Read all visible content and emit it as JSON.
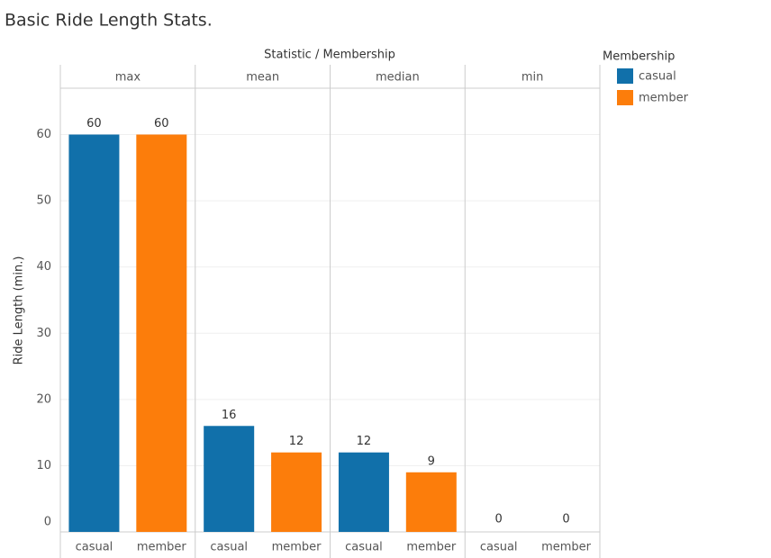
{
  "chart_data": {
    "type": "bar",
    "title": "Basic Ride Length Stats.",
    "column_header": "Statistic / Membership",
    "y_label": "Ride Length (min.)",
    "legend_title": "Membership",
    "categories": [
      "max",
      "mean",
      "median",
      "min"
    ],
    "series": [
      {
        "name": "casual",
        "color": "#1170aa",
        "values": [
          60,
          16,
          12,
          0
        ]
      },
      {
        "name": "member",
        "color": "#fc7d0b",
        "values": [
          60,
          12,
          9,
          0
        ]
      }
    ],
    "ylim": [
      0,
      67
    ],
    "yticks": [
      0,
      10,
      20,
      30,
      40,
      50,
      60
    ],
    "grid": true,
    "legend": "right"
  }
}
